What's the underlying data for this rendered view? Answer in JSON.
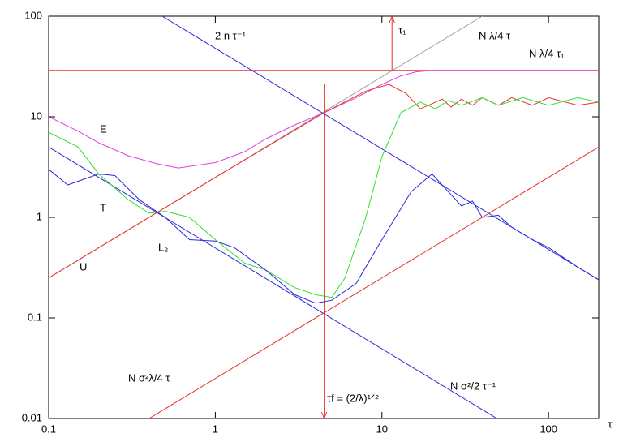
{
  "chart_data": {
    "type": "line",
    "log_x": true,
    "log_y": true,
    "xlabel": "τ",
    "xlim": [
      0.1,
      200
    ],
    "ylim": [
      0.01,
      100
    ],
    "xticks": [
      0.1,
      1,
      10,
      100
    ],
    "yticks": [
      0.01,
      0.1,
      1,
      10,
      100
    ],
    "series": [
      {
        "color": "#a0a0a0",
        "x": [
          0.1,
          40
        ],
        "values": [
          0.25,
          100
        ]
      },
      {
        "color": "#e8302c",
        "x": [
          0.1,
          200
        ],
        "values": [
          29,
          29
        ]
      },
      {
        "color": "#2a2adc",
        "x": [
          0.48,
          200
        ],
        "values": [
          100,
          0.24
        ]
      },
      {
        "color": "#2a2adc",
        "x": [
          0.1,
          49
        ],
        "values": [
          5,
          0.01
        ]
      },
      {
        "color": "#e8302c",
        "x": [
          0.4,
          200
        ],
        "values": [
          0.01,
          5
        ]
      },
      {
        "color": "#e8302c",
        "x": [
          4.5,
          4.5
        ],
        "values": [
          21,
          0.01
        ],
        "arrow": "end"
      },
      {
        "color": "#e8302c",
        "x": [
          11.5,
          11.5
        ],
        "values": [
          29,
          100
        ],
        "arrow": "end"
      },
      {
        "color": "#e040e0",
        "x": [
          0.1,
          0.15,
          0.2,
          0.3,
          0.45,
          0.6,
          1,
          1.5,
          2,
          3,
          4.5,
          7,
          10,
          13,
          16,
          20,
          200
        ],
        "values": [
          10,
          7.2,
          5.5,
          4.1,
          3.4,
          3.1,
          3.5,
          4.5,
          6,
          8.3,
          11,
          15.5,
          21,
          25.5,
          28,
          29,
          29
        ]
      },
      {
        "color": "#e8302c",
        "x": [
          0.1,
          1,
          4.5,
          8,
          11,
          14,
          17,
          20,
          23,
          26,
          30,
          35,
          40,
          50,
          60,
          80,
          100,
          150,
          200
        ],
        "values": [
          0.25,
          2.5,
          11,
          18,
          21,
          17,
          12,
          13.5,
          15,
          12.5,
          15,
          13,
          15.5,
          13,
          15.5,
          13,
          15.5,
          13,
          14
        ]
      },
      {
        "color": "#30e030",
        "x": [
          0.1,
          0.15,
          0.2,
          0.3,
          0.4,
          0.5,
          0.7,
          1,
          1.5,
          2,
          3,
          4,
          5,
          6,
          8,
          10,
          13,
          17,
          21,
          25,
          30,
          40,
          50,
          70,
          100,
          150,
          200
        ],
        "values": [
          7,
          5,
          2.7,
          1.5,
          1.1,
          1.15,
          1.0,
          0.6,
          0.35,
          0.3,
          0.2,
          0.17,
          0.16,
          0.25,
          1,
          4,
          11,
          14,
          12,
          14.5,
          13,
          15.5,
          13,
          15.5,
          13,
          15.5,
          14
        ]
      },
      {
        "color": "#2a2adc",
        "x": [
          0.1,
          0.13,
          0.2,
          0.25,
          0.35,
          0.5,
          0.7,
          1,
          1.3,
          2,
          3,
          4,
          5,
          7,
          10,
          15,
          20,
          25,
          30,
          35,
          40,
          50,
          60,
          80,
          100,
          150,
          200
        ],
        "values": [
          3,
          2.1,
          2.7,
          2.6,
          1.5,
          1,
          0.6,
          0.58,
          0.5,
          0.3,
          0.17,
          0.14,
          0.15,
          0.22,
          0.6,
          1.8,
          2.7,
          1.8,
          1.3,
          1.45,
          1.0,
          1.05,
          0.8,
          0.6,
          0.5,
          0.32,
          0.24
        ]
      }
    ],
    "annotations": [
      "2 n τ⁻¹",
      "N λ/4 τ",
      "N λ/4 τ₁",
      "τ₁",
      "E",
      "T",
      "U",
      "L₂",
      "N σ²λ/4 τ",
      "N σ²/2 τ⁻¹",
      "τf = (2/λ)¹ᐟ²"
    ]
  }
}
